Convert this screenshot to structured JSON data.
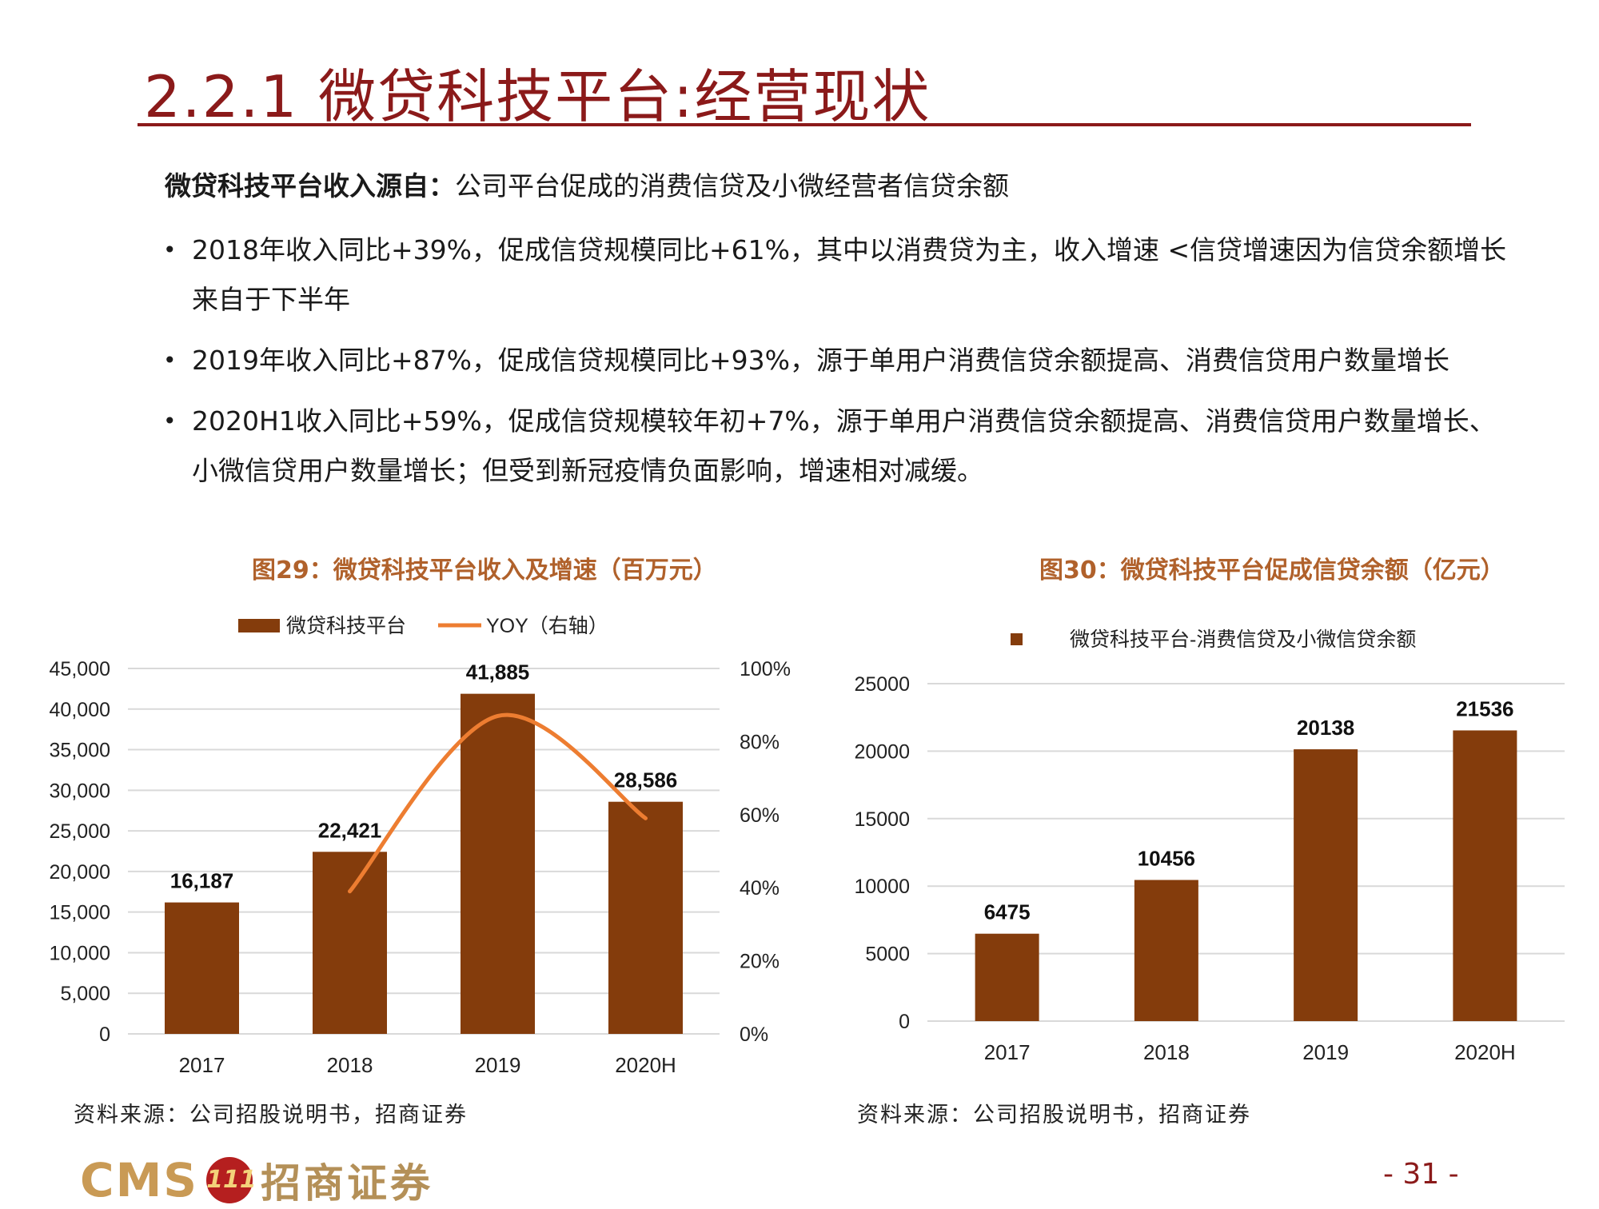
{
  "header": {
    "title": "2.2.1 微贷科技平台:经营现状"
  },
  "intro": {
    "bold": "微贷科技平台收入源自：",
    "text": "公司平台促成的消费信贷及小微经营者信贷余额"
  },
  "bullets": [
    "2018年收入同比+39%，促成信贷规模同比+61%，其中以消费贷为主，收入增速 <信贷增速因为信贷余额增长来自于下半年",
    "2019年收入同比+87%，促成信贷规模同比+93%，源于单用户消费信贷余额提高、消费信贷用户数量增长",
    "2020H1收入同比+59%，促成信贷规模较年初+7%，源于单用户消费信贷余额提高、消费信贷用户数量增长、小微信贷用户数量增长；但受到新冠疫情负面影响，增速相对减缓。"
  ],
  "bullet_mark": "•",
  "chart_data": [
    {
      "type": "bar",
      "title": "图29：微贷科技平台收入及增速（百万元）",
      "categories": [
        "2017",
        "2018",
        "2019",
        "2020H"
      ],
      "series": [
        {
          "name": "微贷科技平台",
          "type": "bar",
          "axis": "left",
          "color": "#843c0c",
          "values": [
            16187,
            22421,
            41885,
            28586
          ]
        },
        {
          "name": "YOY（右轴）",
          "type": "line",
          "axis": "right",
          "color": "#ed7d31",
          "values": [
            null,
            39,
            87,
            59
          ]
        }
      ],
      "data_labels": [
        "16,187",
        "22,421",
        "41,885",
        "28,586"
      ],
      "ylim": [
        0,
        45000
      ],
      "y_ticks": [
        "0",
        "5,000",
        "10,000",
        "15,000",
        "20,000",
        "25,000",
        "30,000",
        "35,000",
        "40,000",
        "45,000"
      ],
      "y2lim": [
        0,
        100
      ],
      "y2_ticks": [
        "0%",
        "20%",
        "40%",
        "60%",
        "80%",
        "100%"
      ],
      "grid": true,
      "legend_position": "top"
    },
    {
      "type": "bar",
      "title": "图30：微贷科技平台促成信贷余额（亿元）",
      "categories": [
        "2017",
        "2018",
        "2019",
        "2020H"
      ],
      "series": [
        {
          "name": "微贷科技平台-消费信贷及小微信贷余额",
          "color": "#843c0c",
          "values": [
            6475,
            10456,
            20138,
            21536
          ]
        }
      ],
      "data_labels": [
        "6475",
        "10456",
        "20138",
        "21536"
      ],
      "ylim": [
        0,
        25000
      ],
      "y_ticks": [
        "0",
        "5000",
        "10000",
        "15000",
        "20000",
        "25000"
      ],
      "grid": true,
      "legend_position": "top"
    }
  ],
  "sources": [
    "资料来源：公司招股说明书，招商证券",
    "资料来源：公司招股说明书，招商证券"
  ],
  "footer": {
    "logo_text": "CMS",
    "logo_badge": "111",
    "logo_cn": "招商证券",
    "page_number": "- 31 -"
  }
}
